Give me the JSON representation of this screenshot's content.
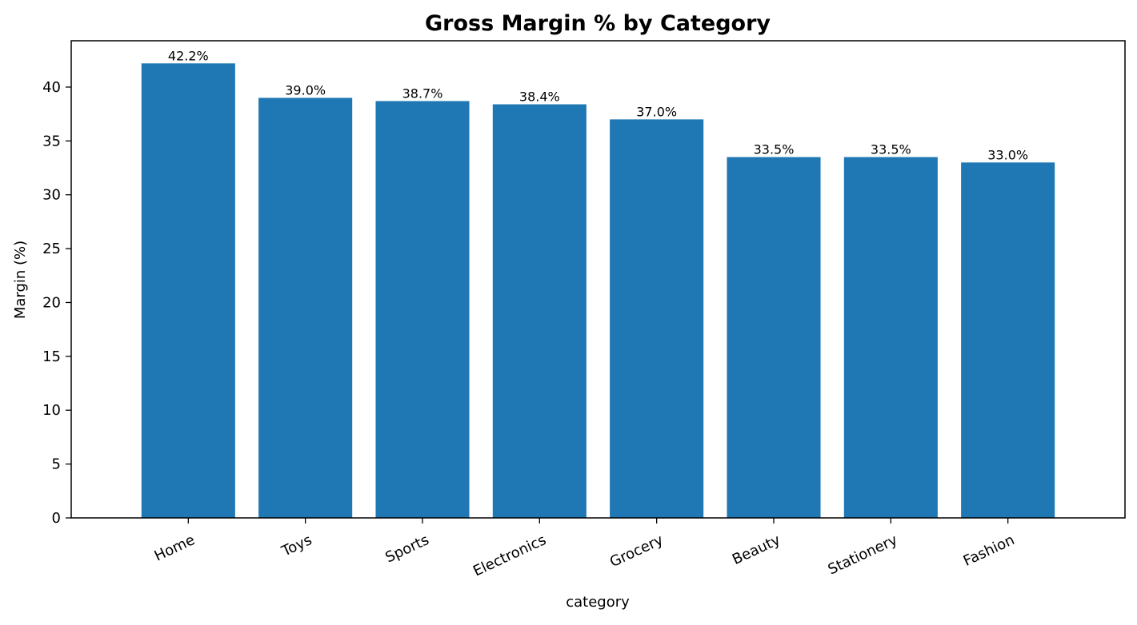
{
  "chart_data": {
    "type": "bar",
    "title": "Gross Margin % by Category",
    "xlabel": "category",
    "ylabel": "Margin (%)",
    "categories": [
      "Home",
      "Toys",
      "Sports",
      "Electronics",
      "Grocery",
      "Beauty",
      "Stationery",
      "Fashion"
    ],
    "values": [
      42.2,
      39.0,
      38.7,
      38.4,
      37.0,
      33.5,
      33.5,
      33.0
    ],
    "data_labels": [
      "42.2%",
      "39.0%",
      "38.7%",
      "38.4%",
      "37.0%",
      "33.5%",
      "33.5%",
      "33.0%"
    ],
    "y_ticks": [
      0,
      5,
      10,
      15,
      20,
      25,
      30,
      35,
      40
    ],
    "ylim": [
      0,
      44.3
    ],
    "grid": false,
    "legend": "none",
    "bar_color": "#1f77b4"
  }
}
